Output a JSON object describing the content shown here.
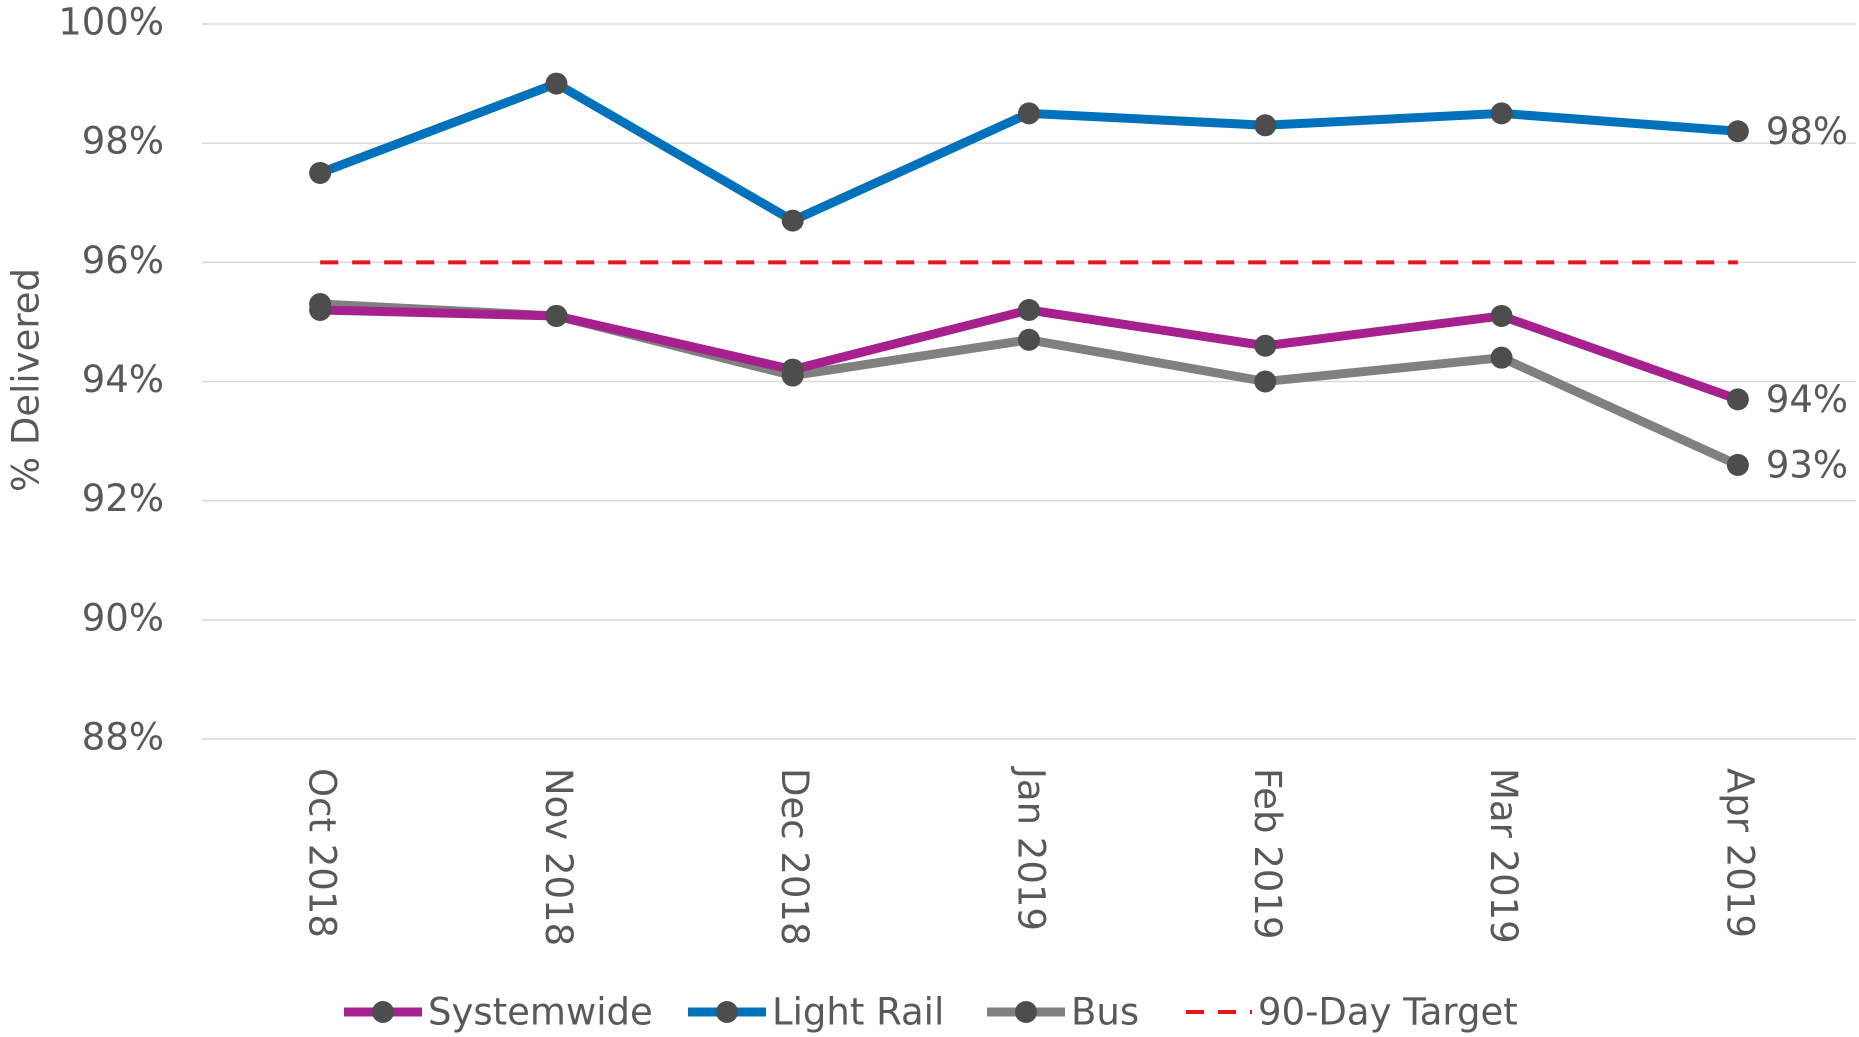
{
  "chart_data": {
    "type": "line",
    "y_label": "% Delivered",
    "categories": [
      "Oct 2018",
      "Nov 2018",
      "Dec 2018",
      "Jan 2019",
      "Feb 2019",
      "Mar 2019",
      "Apr 2019"
    ],
    "series": [
      {
        "name": "Systemwide",
        "color": "#a6218d",
        "markers": true,
        "values": [
          95.2,
          95.1,
          94.2,
          95.2,
          94.6,
          95.1,
          93.7
        ],
        "value_labels": [
          null,
          null,
          null,
          null,
          null,
          null,
          "94%"
        ]
      },
      {
        "name": "Light Rail",
        "color": "#0072bc",
        "markers": true,
        "values": [
          97.5,
          99.0,
          96.7,
          98.5,
          98.3,
          98.5,
          98.2
        ],
        "value_labels": [
          null,
          null,
          null,
          null,
          null,
          null,
          "98%"
        ]
      },
      {
        "name": "Bus",
        "color": "#808080",
        "markers": true,
        "values": [
          95.3,
          95.1,
          94.1,
          94.7,
          94.0,
          94.4,
          92.6
        ],
        "value_labels": [
          null,
          null,
          null,
          null,
          null,
          null,
          "93%"
        ]
      },
      {
        "name": "90-Day Target",
        "color": "#e8141b",
        "dashed": true,
        "markers": false,
        "values": [
          96,
          96,
          96,
          96,
          96,
          96,
          96
        ]
      }
    ],
    "ylim": [
      88,
      100
    ],
    "yticks": [
      {
        "value": 88,
        "label": "88%"
      },
      {
        "value": 90,
        "label": "90%"
      },
      {
        "value": 92,
        "label": "92%"
      },
      {
        "value": 94,
        "label": "94%"
      },
      {
        "value": 96,
        "label": "96%"
      },
      {
        "value": 98,
        "label": "98%"
      },
      {
        "value": 100,
        "label": "100%"
      }
    ],
    "grid": true,
    "legend": "bottom"
  }
}
